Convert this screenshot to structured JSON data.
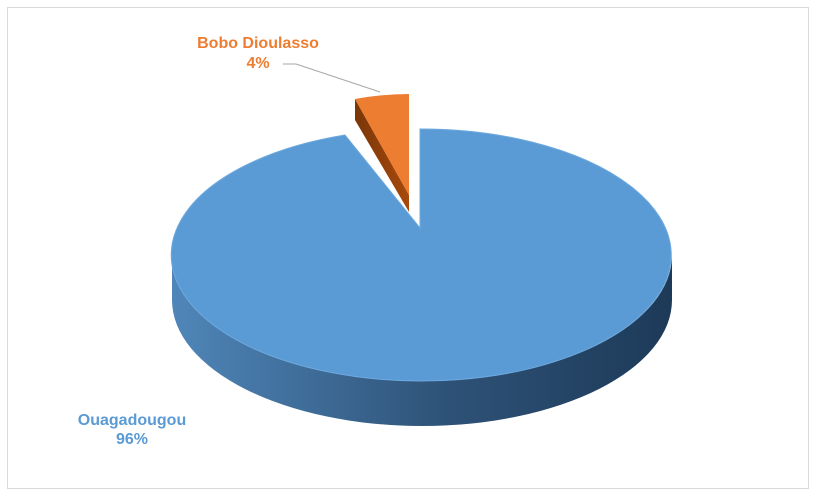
{
  "chart_data": {
    "type": "pie",
    "style": "3d-exploded",
    "title": "",
    "slices": [
      {
        "label": "Ouagadougou",
        "percent_label": "96%",
        "value": 96,
        "color": "#5b9bd5"
      },
      {
        "label": "Bobo Dioulasso",
        "percent_label": "4%",
        "value": 4,
        "color": "#ed7d31"
      }
    ],
    "legend": "none",
    "data_labels": "outside"
  }
}
